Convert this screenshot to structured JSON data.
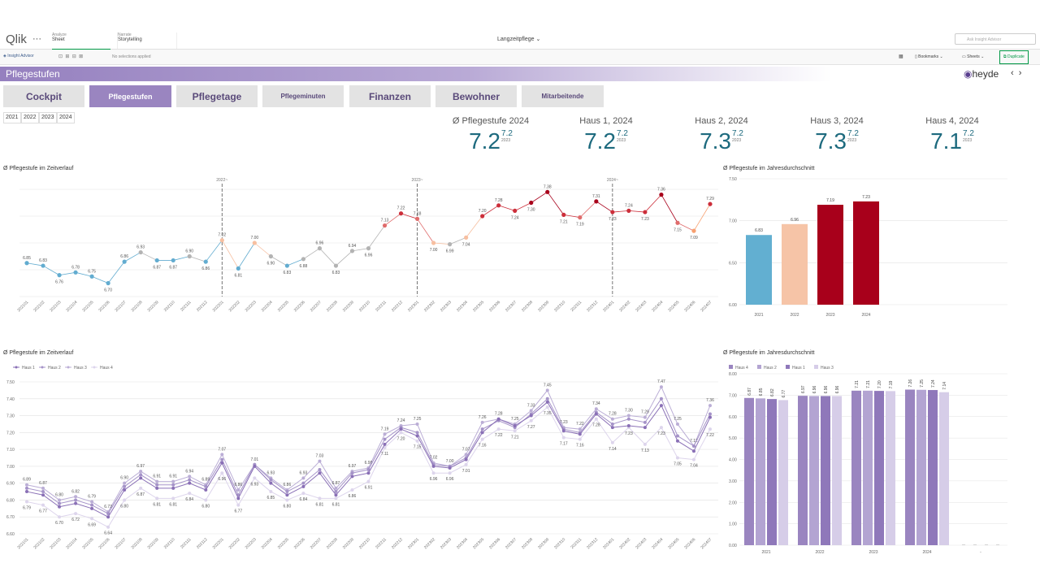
{
  "topbar": {
    "logo": "Qlik",
    "analyze_label": "Analyze",
    "analyze_value": "Sheet",
    "narrate_label": "Narrate",
    "narrate_value": "Storytelling",
    "app_title": "Langzeitpflege",
    "search_placeholder": "Ask Insight Advisor"
  },
  "toolbar": {
    "insight": "Insight Advisor",
    "selections": "No selections applied",
    "bookmarks": "Bookmarks",
    "sheets": "Sheets",
    "duplicate": "Duplicate"
  },
  "sheet": {
    "title": "Pflegestufen",
    "brand": "heyde"
  },
  "tabs": [
    {
      "label": "Cockpit",
      "active": false
    },
    {
      "label": "Pflegestufen",
      "active": true
    },
    {
      "label": "Pflegetage",
      "active": false
    },
    {
      "label": "Pflegeminuten",
      "active": false
    },
    {
      "label": "Finanzen",
      "active": false
    },
    {
      "label": "Bewohner",
      "active": false
    },
    {
      "label": "Mitarbeitende",
      "active": false
    }
  ],
  "year_filter": [
    "2021",
    "2022",
    "2023",
    "2024"
  ],
  "kpis": [
    {
      "title": "Ø Pflegestufe 2024",
      "value": 7.2,
      "prev": 7.2,
      "prev_label": "2023"
    },
    {
      "title": "Haus 1, 2024",
      "value": 7.2,
      "prev": 7.2,
      "prev_label": "2023"
    },
    {
      "title": "Haus 2, 2024",
      "value": 7.3,
      "prev": 7.2,
      "prev_label": "2023"
    },
    {
      "title": "Haus 3, 2024",
      "value": 7.3,
      "prev": 7.2,
      "prev_label": "2023"
    },
    {
      "title": "Haus 4, 2024",
      "value": 7.1,
      "prev": 7.2,
      "prev_label": "2023"
    }
  ],
  "chart_data": [
    {
      "type": "line",
      "title": "Ø Pflegestufe im Zeitverlauf",
      "categories": [
        "202101",
        "202102",
        "202103",
        "202104",
        "202105",
        "202106",
        "202107",
        "202108",
        "202109",
        "202110",
        "202111",
        "202112",
        "202201",
        "202202",
        "202203",
        "202204",
        "202205",
        "202206",
        "202207",
        "202208",
        "202209",
        "202210",
        "202211",
        "202212",
        "202301",
        "202302",
        "202303",
        "202304",
        "202305",
        "202306",
        "202307",
        "202308",
        "202309",
        "202310",
        "202311",
        "202312",
        "202401",
        "202402",
        "202403",
        "202404",
        "202405",
        "202406",
        "202407"
      ],
      "values": [
        6.85,
        6.83,
        6.76,
        6.78,
        6.75,
        6.7,
        6.86,
        6.93,
        6.87,
        6.87,
        6.9,
        6.86,
        7.02,
        6.81,
        7.0,
        6.9,
        6.83,
        6.88,
        6.96,
        6.83,
        6.94,
        6.96,
        7.13,
        7.22,
        7.18,
        7.0,
        6.99,
        7.04,
        7.2,
        7.28,
        7.24,
        7.3,
        7.38,
        7.21,
        7.19,
        7.31,
        7.23,
        7.24,
        7.23,
        7.36,
        7.15,
        7.09,
        7.29
      ],
      "value_labels": [
        "6.85",
        "6.83",
        "6.76",
        "6.78",
        "6.75",
        "6.70",
        "6.86",
        "6.93",
        "6.87",
        "6.87",
        "6.90",
        "6.86",
        "7.02",
        "6.81",
        "7.00",
        "6.90",
        "6.83",
        "6.88",
        "6.96",
        "6.83",
        "6.94",
        "6.96",
        "7.13",
        "7.22",
        "7.18",
        "7.00",
        "6.99",
        "7.04",
        "7.20",
        "7.28",
        "7.24",
        "7.30",
        "7.38",
        "7.21",
        "7.19",
        "7.31",
        "7.23",
        "7.24",
        "7.23",
        "7.36",
        "7.15",
        "7.09",
        "7.29"
      ],
      "point_colors": [
        "#62acd0",
        "#62acd0",
        "#62acd0",
        "#62acd0",
        "#62acd0",
        "#62acd0",
        "#62acd0",
        "#b3b3b3",
        "#62acd0",
        "#62acd0",
        "#b3b3b3",
        "#62acd0",
        "#f7bfa0",
        "#62acd0",
        "#f7bfa0",
        "#b3b3b3",
        "#62acd0",
        "#b3b3b3",
        "#b3b3b3",
        "#b3b3b3",
        "#b3b3b3",
        "#b3b3b3",
        "#e06c6c",
        "#cc2e3a",
        "#e06c6c",
        "#f7bfa0",
        "#b3b3b3",
        "#f7bfa0",
        "#cc2e3a",
        "#cc2e3a",
        "#cc2e3a",
        "#a8001b",
        "#a8001b",
        "#cc2e3a",
        "#e06c6c",
        "#a8001b",
        "#cc2e3a",
        "#cc2e3a",
        "#cc2e3a",
        "#a8001b",
        "#e06c6c",
        "#f7a070",
        "#cc2e3a"
      ],
      "reference_lines": [
        {
          "category": "202201",
          "label": "2022~"
        },
        {
          "category": "202301",
          "label": "2023~"
        },
        {
          "category": "202401",
          "label": "2024~"
        }
      ],
      "ylim": [
        6.6,
        7.4
      ],
      "yticks": [
        6.6,
        6.8,
        7.0,
        7.2,
        7.4
      ],
      "grid": true
    },
    {
      "type": "bar",
      "title": "Ø Pflegestufe im Jahresdurchschnitt",
      "categories": [
        "2021",
        "2022",
        "2023",
        "2024"
      ],
      "values": [
        6.83,
        6.96,
        7.19,
        7.23
      ],
      "colors": [
        "#62afd1",
        "#f6c4a7",
        "#a8001b",
        "#a8001b"
      ],
      "ylim": [
        6,
        7.5
      ],
      "yticks": [
        {
          "value": 6,
          "label": "6.00"
        },
        {
          "value": 6.5,
          "label": "6.50"
        },
        {
          "value": 7,
          "label": "7.00"
        },
        {
          "value": 7.5,
          "label": "7.50"
        }
      ],
      "grid": true
    },
    {
      "type": "multiline",
      "title": "Ø Pflegestufe im Zeitverlauf",
      "categories": [
        "202101",
        "202102",
        "202103",
        "202104",
        "202105",
        "202106",
        "202107",
        "202108",
        "202109",
        "202110",
        "202111",
        "202112",
        "202201",
        "202202",
        "202203",
        "202204",
        "202205",
        "202206",
        "202207",
        "202208",
        "202209",
        "202210",
        "202211",
        "202212",
        "202301",
        "202302",
        "202303",
        "202304",
        "202305",
        "202306",
        "202307",
        "202308",
        "202309",
        "202310",
        "202311",
        "202312",
        "202401",
        "202402",
        "202403",
        "202404",
        "202405",
        "202406",
        "202407"
      ],
      "series": [
        {
          "name": "Haus 1",
          "color": "#8a70b6",
          "values": [
            6.85,
            6.83,
            6.76,
            6.78,
            6.75,
            6.7,
            6.86,
            6.93,
            6.87,
            6.87,
            6.9,
            6.86,
            7.02,
            6.81,
            7.0,
            6.9,
            6.83,
            6.88,
            6.96,
            6.83,
            6.94,
            6.96,
            7.13,
            7.22,
            7.18,
            7.0,
            6.99,
            7.04,
            7.2,
            7.28,
            7.24,
            7.3,
            7.38,
            7.21,
            7.19,
            7.31,
            7.23,
            7.24,
            7.23,
            7.36,
            7.15,
            7.09,
            7.29
          ]
        },
        {
          "name": "Haus 2",
          "color": "#a593c8",
          "values": [
            6.87,
            6.85,
            6.78,
            6.8,
            6.77,
            6.72,
            6.88,
            6.95,
            6.89,
            6.89,
            6.92,
            6.88,
            7.04,
            6.83,
            7.01,
            6.92,
            6.85,
            6.9,
            6.98,
            6.85,
            6.96,
            6.98,
            7.16,
            7.23,
            7.2,
            7.01,
            7.0,
            7.05,
            7.22,
            7.27,
            7.23,
            7.31,
            7.4,
            7.22,
            7.2,
            7.32,
            7.25,
            7.28,
            7.26,
            7.4,
            7.18,
            7.12,
            7.31
          ]
        },
        {
          "name": "Haus 3",
          "color": "#bbaed6",
          "values": [
            6.89,
            6.87,
            6.8,
            6.82,
            6.79,
            6.73,
            6.9,
            6.97,
            6.91,
            6.91,
            6.94,
            6.89,
            7.07,
            6.86,
            7.01,
            6.93,
            6.86,
            6.93,
            7.03,
            6.87,
            6.97,
            6.99,
            7.19,
            7.24,
            7.25,
            7.02,
            7.0,
            7.07,
            7.26,
            7.28,
            7.25,
            7.33,
            7.45,
            7.23,
            7.22,
            7.34,
            7.28,
            7.3,
            7.29,
            7.47,
            7.25,
            7.12,
            7.36
          ],
          "value_labels": [
            "6.89",
            "6.87",
            "6.80",
            "6.82",
            "6.79",
            "6.73",
            "6.90",
            "6.97",
            "6.91",
            "6.91",
            "6.94",
            "6.89",
            "7.07",
            "6.86",
            "7.01",
            "6.93",
            "6.86",
            "6.93",
            "7.03",
            "6.87",
            "6.97",
            "6.99",
            "7.19",
            "7.24",
            "7.25",
            "7.02",
            "7.00",
            "7.07",
            "7.26",
            "7.28",
            "7.25",
            "7.33",
            "7.45",
            "7.23",
            "7.22",
            "7.34",
            "7.28",
            "7.30",
            "7.29",
            "7.47",
            "7.25",
            "7.12",
            "7.36"
          ]
        },
        {
          "name": "Haus 4",
          "color": "#ddd5ec",
          "values": [
            6.79,
            6.77,
            6.7,
            6.72,
            6.69,
            6.64,
            6.8,
            6.87,
            6.81,
            6.81,
            6.84,
            6.8,
            6.96,
            6.77,
            6.93,
            6.85,
            6.8,
            6.84,
            6.81,
            6.81,
            6.86,
            6.91,
            7.11,
            7.2,
            7.15,
            6.96,
            6.96,
            7.01,
            7.16,
            7.22,
            7.21,
            7.27,
            7.35,
            7.17,
            7.16,
            7.28,
            7.14,
            7.23,
            7.13,
            7.23,
            7.05,
            7.04,
            7.22
          ],
          "value_labels": [
            "6.79",
            "6.77",
            "6.70",
            "6.72",
            "6.69",
            "6.64",
            "6.80",
            "6.87",
            "6.81",
            "6.81",
            "6.84",
            "6.80",
            "6.96",
            "6.77",
            "6.93",
            "6.85",
            "6.80",
            "6.84",
            "6.81",
            "6.81",
            "6.86",
            "6.91",
            "7.11",
            "7.20",
            "7.15",
            "6.96",
            "6.96",
            "7.01",
            "7.16",
            "7.22",
            "7.21",
            "7.27",
            "7.35",
            "7.17",
            "7.16",
            "7.28",
            "7.14",
            "7.23",
            "7.13",
            "7.23",
            "7.05",
            "7.04",
            "7.22"
          ]
        }
      ],
      "ylim": [
        6.6,
        7.5
      ],
      "yticks": [
        {
          "value": 6.6,
          "label": "6.60"
        },
        {
          "value": 6.7,
          "label": "6.70"
        },
        {
          "value": 6.8,
          "label": "6.80"
        },
        {
          "value": 6.9,
          "label": "6.90"
        },
        {
          "value": 7,
          "label": "7.00"
        },
        {
          "value": 7.1,
          "label": "7.10"
        },
        {
          "value": 7.2,
          "label": "7.20"
        },
        {
          "value": 7.3,
          "label": "7.30"
        },
        {
          "value": 7.4,
          "label": "7.40"
        },
        {
          "value": 7.5,
          "label": "7.50"
        }
      ],
      "grid": true
    },
    {
      "type": "grouped_bar",
      "title": "Ø Pflegestufe im Jahresdurchschnitt",
      "categories": [
        "2021",
        "2022",
        "2023",
        "2024",
        "-"
      ],
      "series": [
        {
          "name": "Haus 4",
          "color": "#9a85c0",
          "values": [
            6.87,
            6.97,
            7.21,
            7.26,
            null
          ]
        },
        {
          "name": "Haus 2",
          "color": "#b3a4d2",
          "values": [
            6.85,
            6.96,
            7.21,
            7.25,
            null
          ]
        },
        {
          "name": "Haus 1",
          "color": "#8f78ba",
          "values": [
            6.82,
            6.96,
            7.2,
            7.24,
            null
          ],
          "value_labels": [
            "6.82",
            "6.96",
            "7.20",
            "7.24",
            null
          ]
        },
        {
          "name": "Haus 3",
          "color": "#d6cde8",
          "values": [
            6.77,
            6.96,
            7.19,
            7.14,
            null
          ]
        }
      ],
      "ylim": [
        0,
        8
      ],
      "yticks": [
        {
          "value": 0,
          "label": "0.00"
        },
        {
          "value": 1,
          "label": "1.00"
        },
        {
          "value": 2,
          "label": "2.00"
        },
        {
          "value": 3,
          "label": "3.00"
        },
        {
          "value": 4,
          "label": "4.00"
        },
        {
          "value": 5,
          "label": "5.00"
        },
        {
          "value": 6,
          "label": "6.00"
        },
        {
          "value": 7,
          "label": "7.00"
        },
        {
          "value": 8,
          "label": "8.00"
        }
      ],
      "grid": true
    }
  ]
}
